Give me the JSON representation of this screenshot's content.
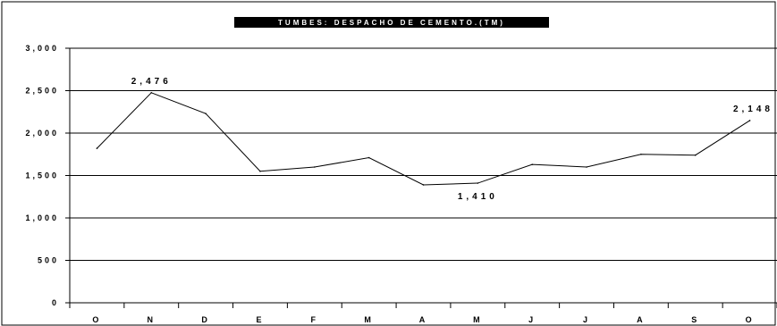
{
  "chart_data": {
    "type": "line",
    "title": "TUMBES: DESPACHO DE CEMENTO.(TM)",
    "categories": [
      "O",
      "N",
      "D",
      "E",
      "F",
      "M",
      "A",
      "M",
      "J",
      "J",
      "A",
      "S",
      "O"
    ],
    "series": [
      {
        "values": [
          1820,
          2476,
          2230,
          1550,
          1600,
          1710,
          1390,
          1410,
          1630,
          1600,
          1750,
          1740,
          2148
        ]
      }
    ],
    "y_ticks": [
      "0",
      "500",
      "1,000",
      "1,500",
      "2,000",
      "2,500",
      "3,000"
    ],
    "ylim": [
      0,
      3000
    ],
    "grid": "horizontal",
    "data_labels": [
      {
        "index": 1,
        "text": "2,476",
        "position": "above"
      },
      {
        "index": 7,
        "text": "1,410",
        "position": "below"
      },
      {
        "index": 12,
        "text": "2,148",
        "position": "above"
      }
    ],
    "colors": {
      "line": "#000000",
      "title_bg": "#000000",
      "title_text": "#ffffff"
    }
  }
}
